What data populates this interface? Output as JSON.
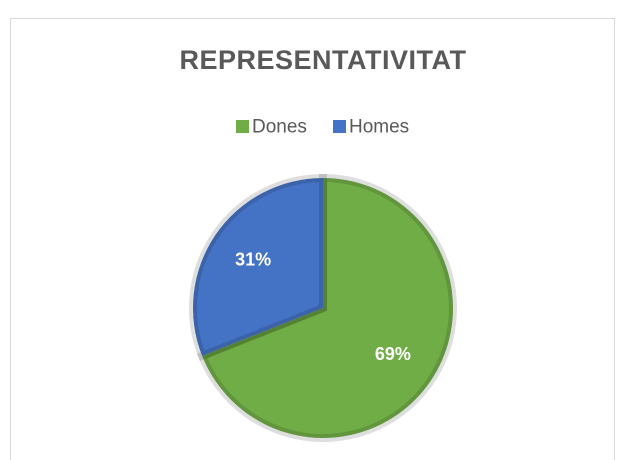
{
  "chart_data": {
    "type": "pie",
    "title": "REPRESENTATIVITAT",
    "categories": [
      "Dones",
      "Homes"
    ],
    "values": [
      69,
      31
    ],
    "value_labels": [
      "69%",
      "31%"
    ],
    "colors": [
      "#70ad47",
      "#4472c4"
    ],
    "legend": "top"
  }
}
